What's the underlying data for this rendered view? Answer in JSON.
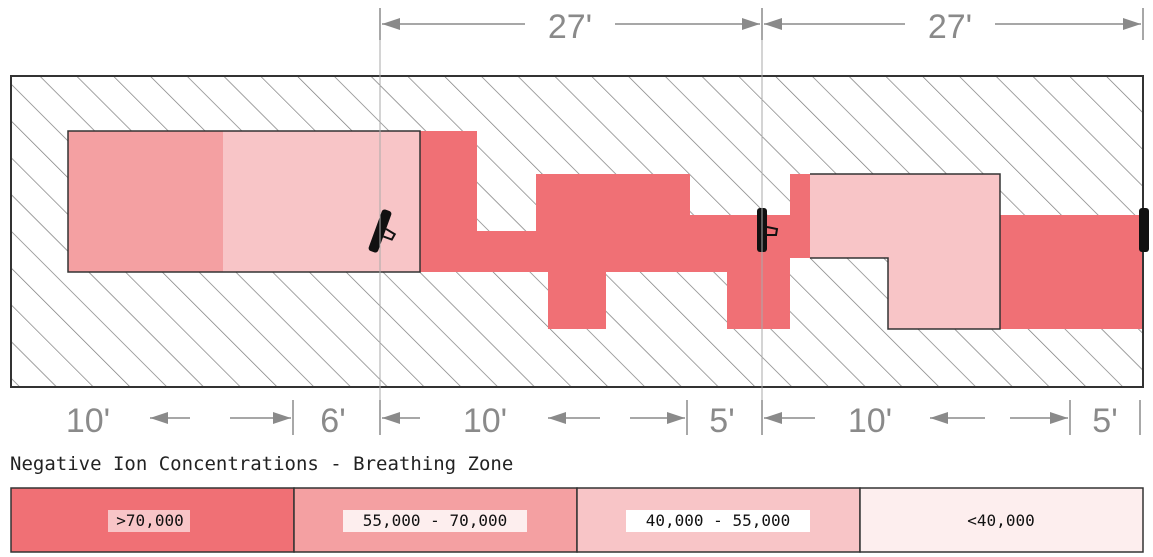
{
  "diagram": {
    "top_dimensions": [
      "27'",
      "27'"
    ],
    "bottom_dimensions": [
      "10'",
      "6'",
      "10'",
      "5'",
      "10'",
      "5'"
    ],
    "title": "Negative Ion Concentrations - Breathing Zone",
    "colors": {
      "gt70k": "#f07075",
      "r55_70k": "#f4a0a2",
      "r40_55k": "#f8c5c7",
      "lt40k": "#fdeeee",
      "hatch": "#7a7a7a",
      "outline": "#333333",
      "dimension": "#8a8a8a"
    },
    "legend": [
      {
        "label": ">70,000",
        "color": "#f07075"
      },
      {
        "label": "55,000 - 70,000",
        "color": "#f4a0a2"
      },
      {
        "label": "40,000 - 55,000",
        "color": "#f8c5c7"
      },
      {
        "label": "<40,000",
        "color": "#fdeeee"
      }
    ],
    "ionizer_icons": [
      "ionizer-icon",
      "ionizer-icon",
      "ionizer-icon"
    ]
  }
}
